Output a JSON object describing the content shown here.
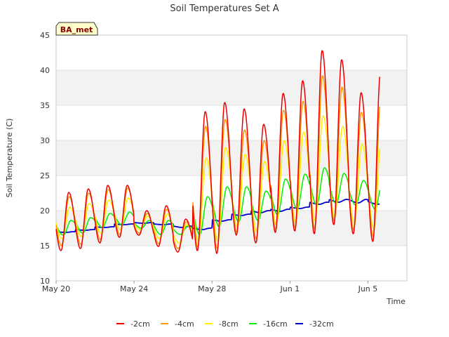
{
  "chart_data": {
    "type": "line",
    "title": "Soil Temperatures Set A",
    "xlabel": "Time",
    "ylabel": "Soil Temperature (C)",
    "ylim": [
      10,
      45
    ],
    "yticks": [
      10,
      15,
      20,
      25,
      30,
      35,
      40,
      45
    ],
    "xlim": [
      "May 20",
      "Jun 7"
    ],
    "xticks": [
      "May 20",
      "May 24",
      "May 28",
      "Jun 1",
      "Jun 5"
    ],
    "grid": "horizontal bands",
    "legend": "bottom",
    "badge": "BA_met",
    "x": [
      "May 20",
      "May 21",
      "May 22",
      "May 23",
      "May 24",
      "May 25",
      "May 26",
      "May 27",
      "May 28",
      "May 29",
      "May 30",
      "May 31",
      "Jun 1",
      "Jun 2",
      "Jun 3",
      "Jun 4",
      "Jun 5",
      "Jun 6"
    ],
    "series": [
      {
        "name": "-2cm",
        "color": "#ee0000",
        "daily_max": [
          22.6,
          23.1,
          23.6,
          23.6,
          20.0,
          20.7,
          18.8,
          34.1,
          35.4,
          34.5,
          32.3,
          36.7,
          38.5,
          42.8,
          41.5,
          36.8,
          40.0,
          40.0
        ],
        "daily_min": [
          14.3,
          14.6,
          15.4,
          16.2,
          16.5,
          14.9,
          14.1,
          14.3,
          13.9,
          16.5,
          15.4,
          16.9,
          17.1,
          16.7,
          18.0,
          16.7,
          15.6,
          20.0
        ]
      },
      {
        "name": "-4cm",
        "color": "#ff9900",
        "daily_max": [
          22.0,
          22.5,
          23.0,
          23.2,
          19.6,
          20.2,
          18.4,
          32.0,
          33.0,
          31.5,
          30.0,
          34.3,
          35.6,
          39.2,
          37.6,
          34.0,
          36.3,
          36.3
        ],
        "daily_min": [
          15.0,
          15.2,
          15.9,
          16.6,
          16.8,
          15.3,
          14.6,
          14.8,
          14.6,
          16.9,
          16.0,
          17.3,
          17.6,
          17.4,
          18.5,
          17.3,
          16.3,
          20.5
        ]
      },
      {
        "name": "-8cm",
        "color": "#ffee00",
        "daily_max": [
          20.5,
          21.0,
          21.5,
          21.8,
          19.2,
          19.5,
          18.0,
          27.5,
          29.0,
          28.0,
          27.0,
          30.0,
          31.2,
          33.5,
          32.0,
          29.5,
          30.7,
          30.7
        ],
        "daily_min": [
          16.0,
          16.3,
          16.8,
          17.3,
          17.3,
          16.0,
          15.4,
          15.6,
          15.6,
          17.6,
          17.0,
          18.0,
          18.4,
          18.6,
          19.2,
          18.2,
          17.4,
          21.0
        ]
      },
      {
        "name": "-16cm",
        "color": "#00ee00",
        "daily_max": [
          18.6,
          19.0,
          19.6,
          19.8,
          18.6,
          18.6,
          17.8,
          22.0,
          23.4,
          23.4,
          22.8,
          24.5,
          25.2,
          26.1,
          25.3,
          24.3,
          24.6,
          24.6
        ],
        "daily_min": [
          16.5,
          16.8,
          17.6,
          18.0,
          17.5,
          16.6,
          16.6,
          16.6,
          17.7,
          18.4,
          18.6,
          19.4,
          20.2,
          20.8,
          21.0,
          20.8,
          20.2,
          22.0
        ]
      },
      {
        "name": "-32cm",
        "color": "#0000cc",
        "daily_max": [
          17.0,
          17.3,
          17.7,
          18.1,
          18.3,
          18.1,
          17.8,
          17.5,
          18.7,
          19.5,
          20.0,
          20.2,
          20.5,
          21.2,
          21.6,
          21.6,
          21.3,
          21.3
        ],
        "daily_min": [
          16.9,
          17.2,
          17.6,
          18.0,
          18.2,
          18.0,
          17.6,
          17.3,
          18.5,
          19.3,
          19.7,
          19.9,
          20.3,
          20.9,
          21.2,
          21.1,
          20.9,
          20.9
        ]
      }
    ]
  }
}
